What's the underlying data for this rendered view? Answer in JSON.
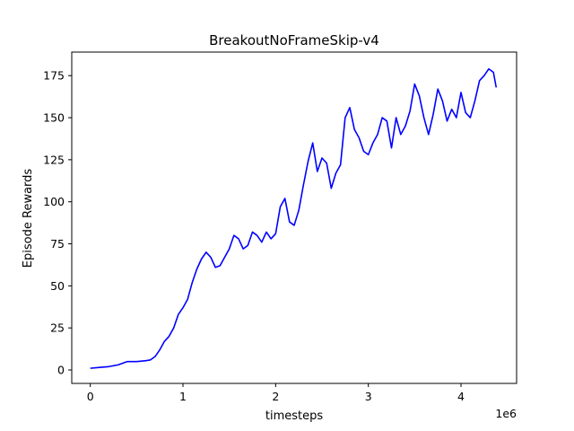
{
  "chart_data": {
    "type": "line",
    "title": "BreakoutNoFrameSkip-v4",
    "xlabel": "timesteps",
    "ylabel": "Episode Rewards",
    "x_offset_label": "1e6",
    "xlim": [
      -0.2,
      4.6
    ],
    "ylim": [
      -8,
      189
    ],
    "xticks": [
      0,
      1,
      2,
      3,
      4
    ],
    "xtick_labels": [
      "0",
      "1",
      "2",
      "3",
      "4"
    ],
    "yticks": [
      0,
      25,
      50,
      75,
      100,
      125,
      150,
      175
    ],
    "ytick_labels": [
      "0",
      "25",
      "50",
      "75",
      "100",
      "125",
      "150",
      "175"
    ],
    "grid": false,
    "series": [
      {
        "color": "#0000ff",
        "x": [
          0.0,
          0.1,
          0.2,
          0.3,
          0.35,
          0.4,
          0.5,
          0.6,
          0.65,
          0.7,
          0.75,
          0.8,
          0.85,
          0.9,
          0.95,
          1.0,
          1.05,
          1.1,
          1.15,
          1.2,
          1.25,
          1.3,
          1.35,
          1.4,
          1.45,
          1.5,
          1.55,
          1.6,
          1.65,
          1.7,
          1.75,
          1.8,
          1.85,
          1.9,
          1.95,
          2.0,
          2.05,
          2.1,
          2.15,
          2.2,
          2.25,
          2.3,
          2.35,
          2.4,
          2.45,
          2.5,
          2.55,
          2.6,
          2.65,
          2.7,
          2.75,
          2.8,
          2.85,
          2.9,
          2.95,
          3.0,
          3.05,
          3.1,
          3.15,
          3.2,
          3.25,
          3.3,
          3.35,
          3.4,
          3.45,
          3.5,
          3.55,
          3.6,
          3.65,
          3.7,
          3.75,
          3.8,
          3.85,
          3.9,
          3.95,
          4.0,
          4.05,
          4.1,
          4.15,
          4.2,
          4.25,
          4.3,
          4.35,
          4.38
        ],
        "y": [
          1,
          1.5,
          2,
          3,
          4,
          5,
          5,
          5.5,
          6,
          8,
          12,
          17,
          20,
          25,
          33,
          37,
          42,
          52,
          60,
          66,
          70,
          67,
          61,
          62,
          67,
          72,
          80,
          78,
          72,
          74,
          82,
          80,
          76,
          82,
          78,
          81,
          97,
          102,
          88,
          86,
          95,
          110,
          124,
          135,
          118,
          126,
          123,
          108,
          117,
          122,
          150,
          156,
          143,
          138,
          130,
          128,
          135,
          140,
          150,
          148,
          132,
          150,
          140,
          145,
          154,
          170,
          163,
          150,
          140,
          152,
          167,
          160,
          148,
          155,
          150,
          165,
          153,
          150,
          160,
          172,
          175,
          179,
          177,
          168
        ]
      }
    ]
  }
}
